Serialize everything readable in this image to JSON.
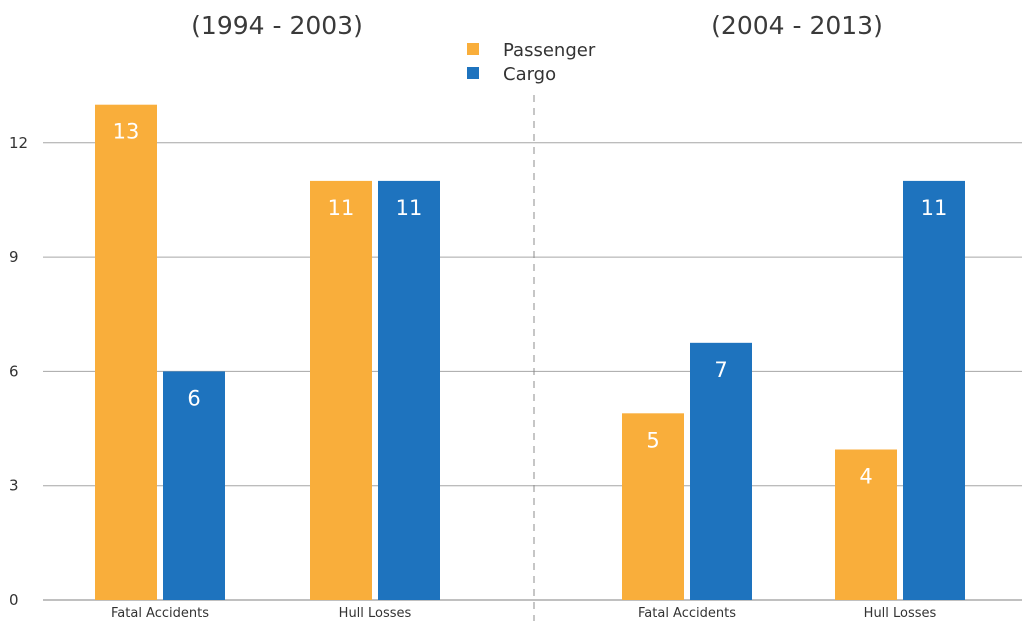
{
  "chart_data": {
    "type": "bar",
    "periods": [
      {
        "title": "(1994 - 2003)",
        "categories": [
          "Fatal Accidents",
          "Hull Losses"
        ],
        "series": [
          {
            "name": "Passenger",
            "values": [
              13,
              11
            ],
            "labels": [
              "13",
              "11"
            ]
          },
          {
            "name": "Cargo",
            "values": [
              6,
              11
            ],
            "labels": [
              "6",
              "11"
            ]
          }
        ]
      },
      {
        "title": "(2004 - 2013)",
        "categories": [
          "Fatal Accidents",
          "Hull Losses"
        ],
        "series": [
          {
            "name": "Passenger",
            "values": [
              4.9,
              3.95
            ],
            "labels": [
              "5",
              "4"
            ]
          },
          {
            "name": "Cargo",
            "values": [
              6.75,
              11
            ],
            "labels": [
              "7",
              "11"
            ]
          }
        ]
      }
    ],
    "legend": [
      {
        "name": "Passenger",
        "color": "#F9AE3B"
      },
      {
        "name": "Cargo",
        "color": "#1E73BE"
      }
    ],
    "legend_position": "top-center",
    "yticks": [
      "0",
      "3",
      "6",
      "9",
      "12"
    ],
    "ylim": [
      0,
      13
    ],
    "grid": true,
    "colors": {
      "passenger": "#F9AE3B",
      "cargo": "#1E73BE"
    }
  }
}
